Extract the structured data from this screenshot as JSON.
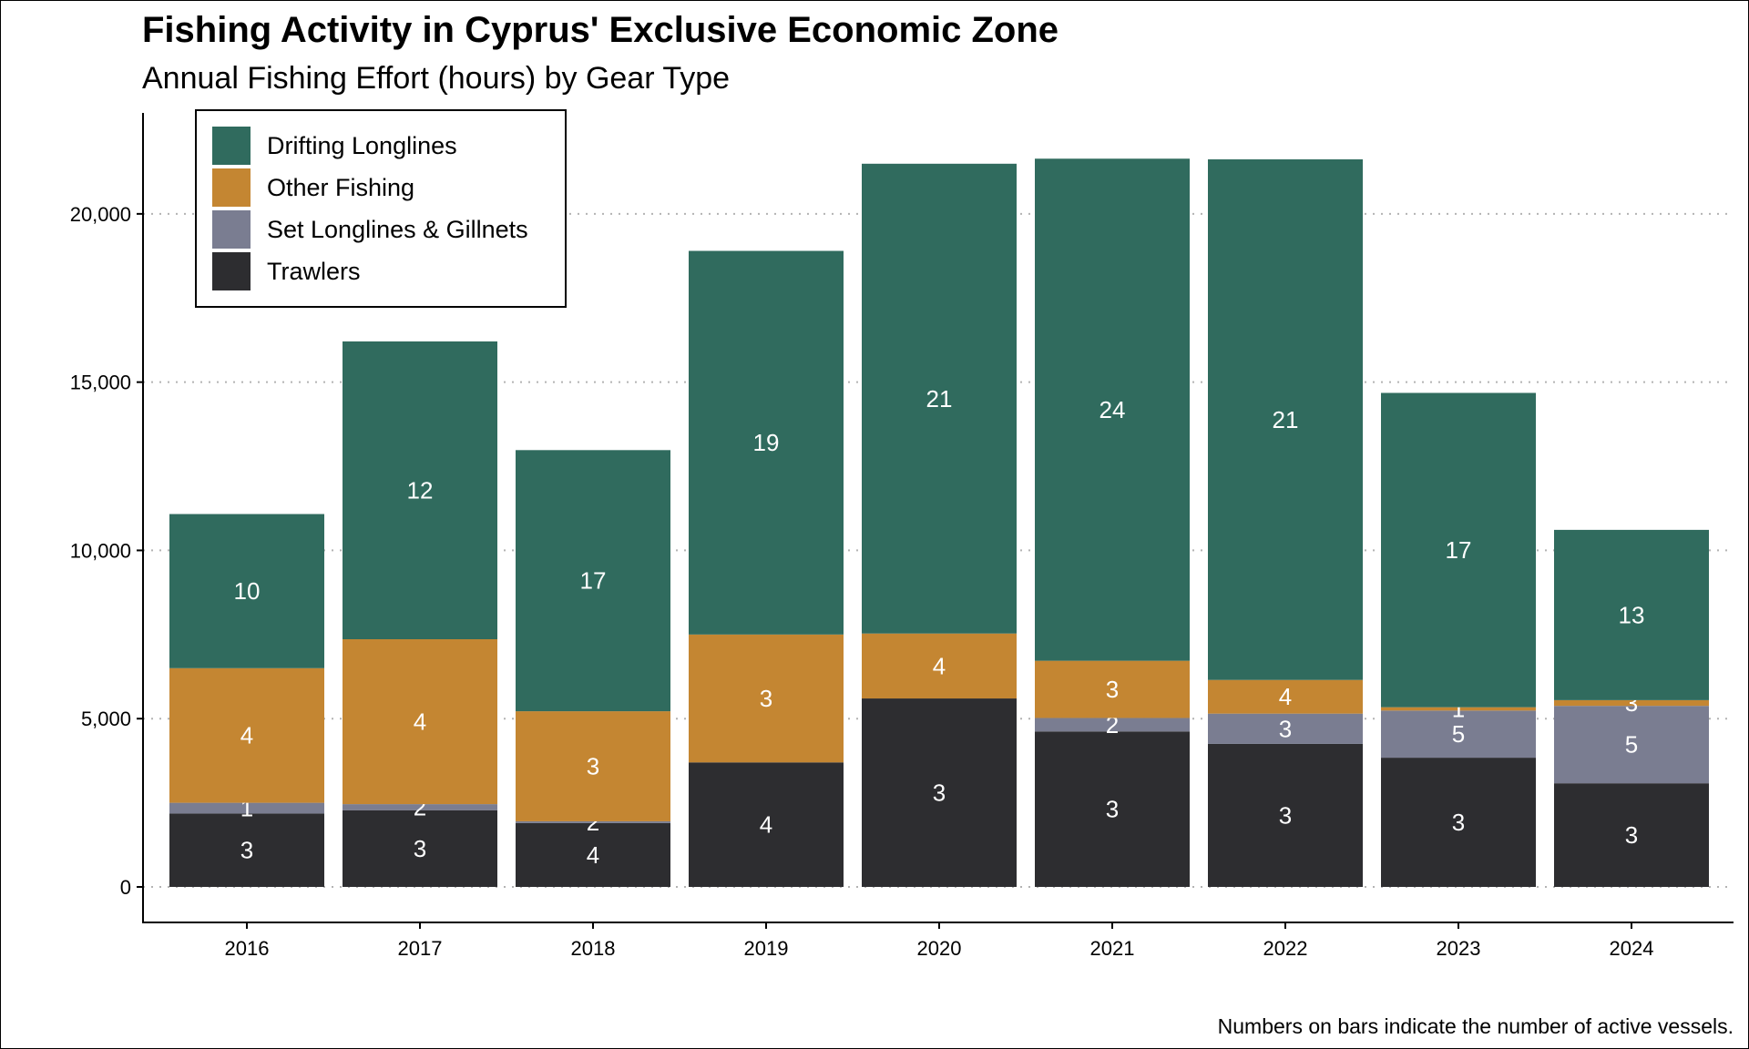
{
  "title": "Fishing Activity in Cyprus' Exclusive Economic Zone",
  "subtitle": "Annual Fishing Effort (hours) by Gear Type",
  "caption": "Numbers on bars indicate the number of active vessels.",
  "chart_data": {
    "type": "bar",
    "stacked": true,
    "categories": [
      "2016",
      "2017",
      "2018",
      "2019",
      "2020",
      "2021",
      "2022",
      "2023",
      "2024"
    ],
    "ylim": [
      0,
      23000
    ],
    "y_ticks": [
      0,
      5000,
      10000,
      15000,
      20000
    ],
    "y_tick_labels": [
      "0",
      "5,000",
      "10,000",
      "15,000",
      "20,000"
    ],
    "grid": "horizontal dotted",
    "legend_position": "top-left",
    "xlabel": "",
    "ylabel": "",
    "series": [
      {
        "name": "Trawlers",
        "color": "#2d2d30",
        "values": [
          2180,
          2280,
          1900,
          3700,
          5600,
          4620,
          4250,
          3840,
          3080
        ],
        "vessels": [
          "3",
          "3",
          "4",
          "4",
          "3",
          "3",
          "3",
          "3",
          "3"
        ]
      },
      {
        "name": "Set Longlines & Gillnets",
        "color": "#7a7d91",
        "values": [
          320,
          180,
          50,
          0,
          0,
          400,
          900,
          1400,
          2300
        ],
        "vessels": [
          "1",
          "2",
          "2",
          "",
          "",
          "2",
          "3",
          "5",
          "5"
        ]
      },
      {
        "name": "Other Fishing",
        "color": "#c48632",
        "values": [
          4000,
          4900,
          3270,
          3800,
          1930,
          1700,
          1000,
          100,
          170
        ],
        "vessels": [
          "4",
          "4",
          "3",
          "3",
          "4",
          "3",
          "4",
          "1",
          "3"
        ]
      },
      {
        "name": "Drifting Longlines",
        "color": "#306b5e",
        "values": [
          4580,
          8850,
          7760,
          11400,
          13960,
          14920,
          15470,
          9340,
          5060
        ],
        "vessels": [
          "10",
          "12",
          "17",
          "19",
          "21",
          "24",
          "21",
          "17",
          "13"
        ]
      }
    ],
    "legend_order": [
      "Drifting Longlines",
      "Other Fishing",
      "Set Longlines & Gillnets",
      "Trawlers"
    ]
  }
}
